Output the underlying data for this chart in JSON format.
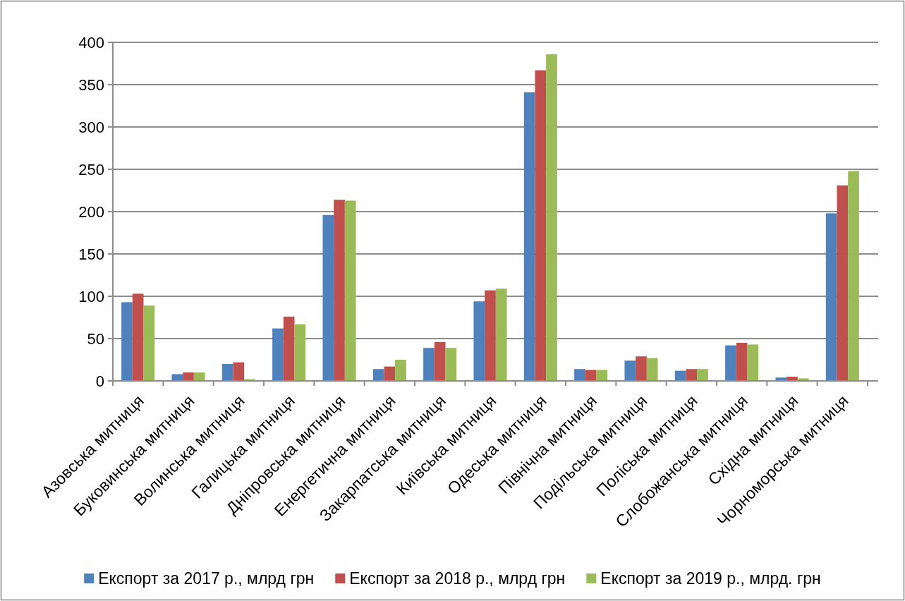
{
  "chart_data": {
    "type": "bar",
    "categories": [
      "Азовська митниця",
      "Буковинська митниця",
      "Волинська митниця",
      "Галицька митниця",
      "Дніпровська митниця",
      "Енергетична митниця",
      "Закарпатська митниця",
      "Київська митниця",
      "Одеська митниця",
      "Північна митниця",
      "Подільська митниця",
      "Поліська митниця",
      "Слобожанська митниця",
      "Східна митниця",
      "Чорноморська митниця"
    ],
    "series": [
      {
        "name": "Експорт за 2017 р., млрд грн",
        "color": "#4f81bd",
        "values": [
          93,
          8,
          20,
          62,
          196,
          14,
          39,
          94,
          341,
          14,
          24,
          12,
          42,
          4,
          198
        ]
      },
      {
        "name": "Експорт за 2018 р., млрд грн",
        "color": "#c0504d",
        "values": [
          103,
          10,
          22,
          76,
          214,
          17,
          46,
          107,
          367,
          13,
          29,
          14,
          45,
          5,
          231
        ]
      },
      {
        "name": "Експорт за 2019 р., млрд. грн",
        "color": "#9bbb59",
        "values": [
          89,
          10,
          2,
          67,
          213,
          25,
          39,
          109,
          386,
          13,
          27,
          14,
          43,
          3,
          248
        ]
      }
    ],
    "ylim": [
      0,
      400
    ],
    "yticks": [
      0,
      50,
      100,
      150,
      200,
      250,
      300,
      350,
      400
    ],
    "grid": "y",
    "legend": "bottom"
  }
}
